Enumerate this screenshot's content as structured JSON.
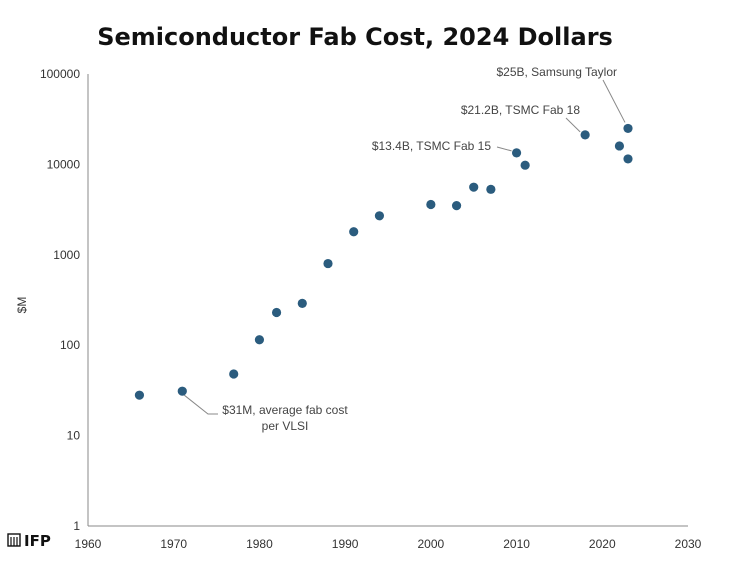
{
  "chart_data": {
    "type": "scatter",
    "title": "Semiconductor Fab Cost, 2024 Dollars",
    "xlabel": "",
    "ylabel": "$M",
    "xlim": [
      1960,
      2030
    ],
    "ylim": [
      1,
      100000
    ],
    "yscale": "log",
    "grid": false,
    "x_ticks": [
      "1960",
      "1970",
      "1980",
      "1990",
      "2000",
      "2010",
      "2020",
      "2030"
    ],
    "y_ticks": [
      "1",
      "10",
      "100",
      "1000",
      "10000",
      "100000"
    ],
    "point_color": "#2b5c7e",
    "points": [
      {
        "x": 1966,
        "y": 28
      },
      {
        "x": 1971,
        "y": 31
      },
      {
        "x": 1977,
        "y": 48
      },
      {
        "x": 1980,
        "y": 115
      },
      {
        "x": 1982,
        "y": 230
      },
      {
        "x": 1985,
        "y": 290
      },
      {
        "x": 1988,
        "y": 800
      },
      {
        "x": 1991,
        "y": 1800
      },
      {
        "x": 1994,
        "y": 2700
      },
      {
        "x": 2000,
        "y": 3600
      },
      {
        "x": 2003,
        "y": 3500
      },
      {
        "x": 2005,
        "y": 5600
      },
      {
        "x": 2007,
        "y": 5300
      },
      {
        "x": 2010,
        "y": 13400
      },
      {
        "x": 2011,
        "y": 9800
      },
      {
        "x": 2018,
        "y": 21200
      },
      {
        "x": 2022,
        "y": 16000
      },
      {
        "x": 2023,
        "y": 25000
      },
      {
        "x": 2023,
        "y": 11500
      }
    ],
    "annotations": [
      {
        "lines": [
          "$25B, Samsung Taylor"
        ],
        "x": 2023,
        "y": 25000
      },
      {
        "lines": [
          "$21.2B, TSMC Fab 18"
        ],
        "x": 2018,
        "y": 21200
      },
      {
        "lines": [
          "$13.4B, TSMC Fab 15"
        ],
        "x": 2010,
        "y": 13400
      },
      {
        "lines": [
          "$31M, average fab cost",
          "per VLSI"
        ],
        "x": 1971,
        "y": 31
      }
    ]
  },
  "logo": {
    "text": "IFP",
    "icon": "ifp-logo-icon"
  }
}
